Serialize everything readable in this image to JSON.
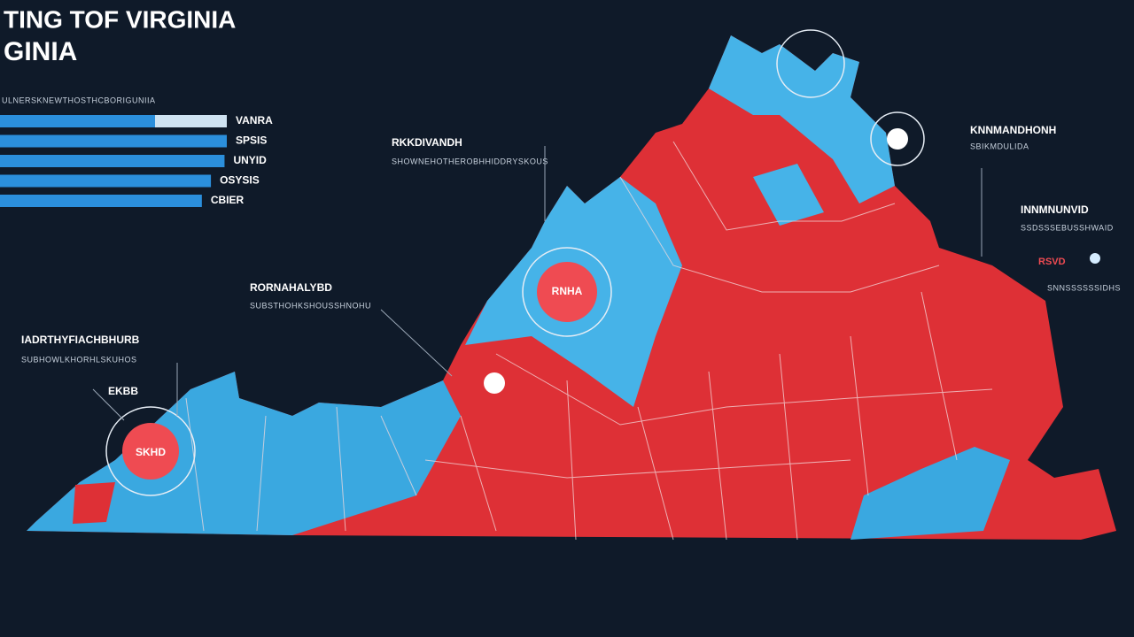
{
  "header": {
    "title": "TING TOF VIRGINIA",
    "subtitle": "GINIA"
  },
  "legend": {
    "heading": "ULNERSKNEWTHOSTHCBORIGUNIIA",
    "bars": [
      {
        "label": "VANRA",
        "value": 100
      },
      {
        "label": "SPSIS",
        "value": 100
      },
      {
        "label": "UNYID",
        "value": 99
      },
      {
        "label": "OSYSIS",
        "value": 93
      },
      {
        "label": "CBIER",
        "value": 89
      }
    ]
  },
  "annotations": [
    {
      "title": "RKKDIVANDH",
      "text": "SHOWNEHOTHEROBHHIDDRYSKOUS"
    },
    {
      "title": "RORNAHALYBD",
      "text": "SUBSTHOHKSHOUSSHNOHU"
    },
    {
      "title": "IADRTHYFIACHBHURB",
      "text": "SUBHOWLKHORHLSKUHOS",
      "note": "EKBB"
    },
    {
      "title": "KNNMANDHONH",
      "text": "SBIKMDULIDA"
    },
    {
      "title": "INNMNUNVID",
      "text": "SSDSSSEBUSSHWAID",
      "note": "RSVD",
      "extra": "SNNSSSSSSIDHS"
    }
  ],
  "markers": [
    "RNHA",
    "SKHD"
  ]
}
